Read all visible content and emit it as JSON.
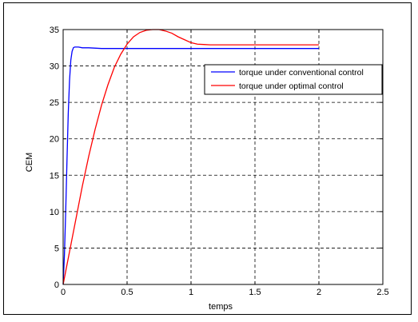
{
  "chart_data": {
    "type": "line",
    "title": "",
    "xlabel": "temps",
    "ylabel": "CEM",
    "xlim": [
      0,
      2.5
    ],
    "ylim": [
      0,
      35
    ],
    "xticks": [
      0,
      0.5,
      1,
      1.5,
      2,
      2.5
    ],
    "yticks": [
      0,
      5,
      10,
      15,
      20,
      25,
      30,
      35
    ],
    "xtick_labels": [
      "0",
      "0.5",
      "1",
      "1.5",
      "2",
      "2.5"
    ],
    "ytick_labels": [
      "0",
      "5",
      "10",
      "15",
      "20",
      "25",
      "30",
      "35"
    ],
    "grid": true,
    "legend_position": "top-right",
    "series": [
      {
        "name": "torque under conventional control",
        "color": "#0000ff",
        "x": [
          0,
          0.01,
          0.02,
          0.03,
          0.04,
          0.05,
          0.06,
          0.07,
          0.08,
          0.09,
          0.1,
          0.12,
          0.15,
          0.2,
          0.3,
          0.5,
          1.0,
          1.5,
          2.0
        ],
        "y": [
          0,
          4.0,
          10.0,
          17.0,
          23.5,
          28.0,
          30.8,
          32.0,
          32.5,
          32.6,
          32.6,
          32.6,
          32.5,
          32.5,
          32.4,
          32.4,
          32.4,
          32.4,
          32.4
        ]
      },
      {
        "name": "torque under optimal control",
        "color": "#ff0000",
        "x": [
          0,
          0.05,
          0.1,
          0.15,
          0.2,
          0.25,
          0.3,
          0.35,
          0.4,
          0.45,
          0.5,
          0.55,
          0.6,
          0.65,
          0.7,
          0.75,
          0.8,
          0.85,
          0.9,
          0.95,
          1.0,
          1.05,
          1.1,
          1.15,
          1.2,
          1.3,
          1.5,
          1.8,
          2.0
        ],
        "y": [
          0,
          4.5,
          9.0,
          13.5,
          17.6,
          21.3,
          24.6,
          27.4,
          29.8,
          31.6,
          33.0,
          34.0,
          34.6,
          34.9,
          35.0,
          35.0,
          34.8,
          34.5,
          34.0,
          33.6,
          33.2,
          33.0,
          32.95,
          32.9,
          32.9,
          32.9,
          32.9,
          32.9,
          32.9
        ]
      }
    ]
  }
}
